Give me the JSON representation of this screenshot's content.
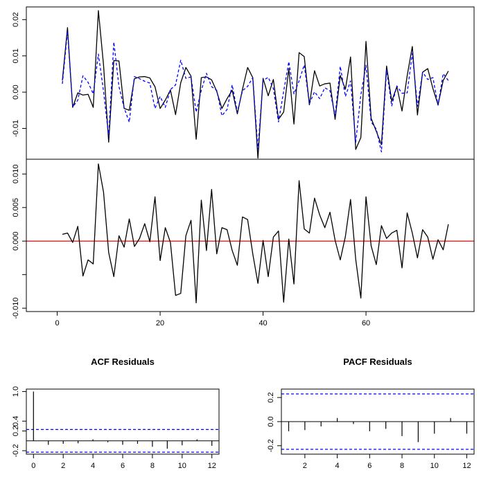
{
  "chart_data": [
    {
      "type": "line",
      "title": "",
      "xlabel": "",
      "ylabel": "",
      "xlim": [
        -6,
        81
      ],
      "ylim": [
        -0.0185,
        0.0235
      ],
      "yticks": [
        -0.01,
        0.0,
        0.01,
        0.02
      ],
      "ytick_labels": [
        "-0.01",
        "0.00",
        "0.01",
        "0.02"
      ],
      "grid": false,
      "series": [
        {
          "color": "#000000",
          "dash": "solid",
          "x": [
            1,
            2,
            3,
            4,
            5,
            6,
            7,
            8,
            9,
            10,
            11,
            12,
            13,
            14,
            15,
            16,
            17,
            18,
            19,
            20,
            21,
            22,
            23,
            24,
            25,
            26,
            27,
            28,
            29,
            30,
            31,
            32,
            33,
            34,
            35,
            36,
            37,
            38,
            39,
            40,
            41,
            42,
            43,
            44,
            45,
            46,
            47,
            48,
            49,
            50,
            51,
            52,
            53,
            54,
            55,
            56,
            57,
            58,
            59,
            60,
            61,
            62,
            63,
            64,
            65,
            66,
            67,
            68,
            69,
            70,
            71,
            72,
            73,
            74,
            75,
            76
          ],
          "y": [
            0.0032,
            0.0178,
            -0.0042,
            -0.0002,
            -0.0008,
            -0.0006,
            -0.0042,
            0.0225,
            0.0075,
            -0.0138,
            0.0087,
            0.0086,
            -0.0045,
            -0.005,
            0.0037,
            0.0042,
            0.0043,
            0.0039,
            0.0015,
            -0.0045,
            -0.0022,
            0.0006,
            -0.0062,
            0.0026,
            0.0068,
            0.0044,
            -0.013,
            0.004,
            0.0042,
            0.0034,
            0.0002,
            -0.0045,
            -0.0018,
            0.0005,
            -0.006,
            0.0008,
            0.0068,
            0.004,
            -0.0182,
            0.0038,
            -0.001,
            0.0035,
            -0.0075,
            -0.0055,
            0.0065,
            -0.0088,
            0.0109,
            0.0098,
            -0.0035,
            0.0059,
            0.0017,
            0.0023,
            0.0025,
            -0.0075,
            0.0046,
            0.0008,
            0.0097,
            -0.0158,
            -0.0125,
            0.014,
            -0.0072,
            -0.0108,
            -0.0145,
            0.0072,
            -0.0025,
            0.0015,
            -0.0052,
            0.0045,
            0.0126,
            -0.0063,
            0.0055,
            0.0065,
            0.001,
            -0.0035,
            0.0032,
            0.0058
          ]
        },
        {
          "color": "#0000ff",
          "dash": "dashed",
          "x": [
            1,
            2,
            3,
            4,
            5,
            6,
            7,
            8,
            9,
            10,
            11,
            12,
            13,
            14,
            15,
            16,
            17,
            18,
            19,
            20,
            21,
            22,
            23,
            24,
            25,
            26,
            27,
            28,
            29,
            30,
            31,
            32,
            33,
            34,
            35,
            36,
            37,
            38,
            39,
            40,
            41,
            42,
            43,
            44,
            45,
            46,
            47,
            48,
            49,
            50,
            51,
            52,
            53,
            54,
            55,
            56,
            57,
            58,
            59,
            60,
            61,
            62,
            63,
            64,
            65,
            66,
            67,
            68,
            69,
            70,
            71,
            72,
            73,
            74,
            75,
            76
          ],
          "y": [
            0.0023,
            0.0168,
            -0.0041,
            -0.0022,
            0.0045,
            0.0027,
            -0.0005,
            0.0105,
            0.0003,
            -0.0122,
            0.0138,
            0.0015,
            -0.0043,
            -0.0083,
            0.0043,
            0.0037,
            0.003,
            0.0025,
            -0.0045,
            -0.0012,
            -0.0042,
            0.0007,
            0.002,
            0.0088,
            0.0038,
            0.0042,
            -0.0055,
            0.0005,
            0.0052,
            0.0015,
            0.0005,
            -0.0065,
            -0.0048,
            0.002,
            -0.0055,
            0.0004,
            0.0016,
            0.004,
            -0.0158,
            0.0032,
            0.0041,
            0.001,
            -0.0082,
            0.0002,
            0.0084,
            -0.0005,
            0.0031,
            0.0075,
            -0.0032,
            0.0001,
            -0.0018,
            0.0012,
            0.0004,
            -0.0065,
            0.0071,
            -0.0012,
            0.0031,
            -0.0138,
            -0.0008,
            0.0074,
            -0.0082,
            -0.0102,
            -0.0165,
            0.0062,
            -0.0038,
            0.0017,
            -0.0003,
            -0.0002,
            0.0107,
            -0.0039,
            0.0055,
            0.0035,
            0.004,
            -0.0036,
            0.0051,
            0.0032
          ]
        }
      ]
    },
    {
      "type": "line",
      "title": "",
      "xlabel": "",
      "ylabel": "",
      "xlim": [
        -6,
        81
      ],
      "ylim": [
        -0.0105,
        0.0122
      ],
      "xticks": [
        0,
        20,
        40,
        60
      ],
      "xtick_labels": [
        "0",
        "20",
        "40",
        "60"
      ],
      "yticks": [
        -0.01,
        -0.005,
        0.0,
        0.005,
        0.01
      ],
      "ytick_labels": [
        "-0.010",
        "",
        "0.000",
        "0.005",
        "0.010"
      ],
      "hline": {
        "y": 0.0,
        "color": "#ff0000"
      },
      "grid": false,
      "series": [
        {
          "color": "#000000",
          "dash": "solid",
          "x": [
            1,
            2,
            3,
            4,
            5,
            6,
            7,
            8,
            9,
            10,
            11,
            12,
            13,
            14,
            15,
            16,
            17,
            18,
            19,
            20,
            21,
            22,
            23,
            24,
            25,
            26,
            27,
            28,
            29,
            30,
            31,
            32,
            33,
            34,
            35,
            36,
            37,
            38,
            39,
            40,
            41,
            42,
            43,
            44,
            45,
            46,
            47,
            48,
            49,
            50,
            51,
            52,
            53,
            54,
            55,
            56,
            57,
            58,
            59,
            60,
            61,
            62,
            63,
            64,
            65,
            66,
            67,
            68,
            69,
            70,
            71,
            72,
            73,
            74,
            75,
            76
          ],
          "y": [
            0.001,
            0.0012,
            -0.0002,
            0.0022,
            -0.0052,
            -0.0028,
            -0.0034,
            0.0115,
            0.0073,
            -0.0017,
            -0.0053,
            0.0008,
            -0.0009,
            0.0033,
            -0.0008,
            0.0004,
            0.0026,
            -0.0001,
            0.0066,
            -0.0029,
            0.002,
            -0.0002,
            -0.0081,
            -0.0078,
            0.0008,
            0.0031,
            -0.0092,
            0.0061,
            -0.0014,
            0.0077,
            -0.0019,
            0.002,
            0.0017,
            -0.0014,
            -0.0036,
            0.0036,
            0.0032,
            -0.0019,
            -0.0063,
            0.0001,
            -0.0053,
            0.0006,
            0.0015,
            -0.0091,
            0.0003,
            -0.0064,
            0.009,
            0.0018,
            0.0012,
            0.0064,
            0.0039,
            0.002,
            0.0043,
            0.0001,
            -0.0028,
            0.0007,
            0.0062,
            -0.0027,
            -0.0085,
            0.0066,
            -0.0007,
            -0.0035,
            0.0023,
            0.0004,
            0.0012,
            0.0016,
            -0.004,
            0.0042,
            0.0012,
            -0.0025,
            0.0017,
            0.0006,
            -0.0027,
            0.0002,
            -0.0013,
            0.0025
          ]
        }
      ]
    },
    {
      "type": "bar",
      "title": "ACF Residuals",
      "xlabel": "",
      "ylabel": "",
      "xlim": [
        -0.48,
        12.48
      ],
      "ylim": [
        -0.27,
        1.05
      ],
      "xticks": [
        0,
        2,
        4,
        6,
        8,
        10,
        12
      ],
      "xtick_labels": [
        "0",
        "2",
        "4",
        "6",
        "8",
        "10",
        "12"
      ],
      "yticks": [
        -0.2,
        0.2,
        0.4,
        1.0
      ],
      "ytick_labels": [
        "-0.2",
        "0.2",
        "0.4",
        "1.0"
      ],
      "lags": [
        0,
        1,
        2,
        3,
        4,
        5,
        6,
        7,
        8,
        9,
        10,
        11,
        12
      ],
      "values": [
        1.0,
        -0.08,
        -0.06,
        -0.05,
        0.03,
        -0.03,
        -0.08,
        -0.06,
        -0.12,
        -0.16,
        -0.09,
        0.03,
        -0.1
      ],
      "conf_bands": [
        0.23,
        -0.23
      ],
      "grid": false
    },
    {
      "type": "bar",
      "title": "PACF Residuals",
      "xlabel": "",
      "ylabel": "",
      "xlim": [
        0.55,
        12.45
      ],
      "ylim": [
        -0.27,
        0.27
      ],
      "xticks": [
        2,
        4,
        6,
        8,
        10,
        12
      ],
      "xtick_labels": [
        "2",
        "4",
        "6",
        "8",
        "10",
        "12"
      ],
      "yticks": [
        -0.2,
        0.0,
        0.2
      ],
      "ytick_labels": [
        "-0.2",
        "0.0",
        "0.2"
      ],
      "lags": [
        1,
        2,
        3,
        4,
        5,
        6,
        7,
        8,
        9,
        10,
        11,
        12
      ],
      "values": [
        -0.08,
        -0.07,
        -0.04,
        0.03,
        -0.02,
        -0.08,
        -0.06,
        -0.12,
        -0.17,
        -0.1,
        0.03,
        -0.1
      ],
      "conf_bands": [
        0.23,
        -0.23
      ],
      "grid": false
    }
  ],
  "colors": {
    "series_main": "#000000",
    "series_fitted": "#0000ff",
    "zero_line": "#ff0000",
    "conf_band": "#0000ff"
  }
}
